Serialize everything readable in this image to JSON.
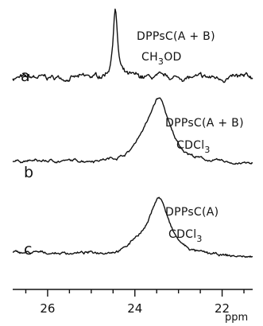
{
  "chart_data": {
    "type": "line",
    "xlabel": "ppm",
    "xlim": [
      26.8,
      21.3
    ],
    "x_reversed": true,
    "x_ticks": [
      "26",
      "24",
      "22"
    ],
    "x_tick_values": [
      26,
      24,
      22
    ],
    "grid": false,
    "series": [
      {
        "label": "a",
        "annotation_line1": "DPPsC(A + B)",
        "annotation_line2_main": "CH",
        "annotation_line2_sub": "3",
        "annotation_line2_tail": "OD",
        "peak_ppm": 24.45,
        "peak_height": 1.0,
        "peak_width_ppm": 0.06,
        "noise": 0.045,
        "baseline_tilt": 0.0
      },
      {
        "label": "b",
        "annotation_line1": "DPPsC(A + B)",
        "annotation_line2_main": "CDCl",
        "annotation_line2_sub": "3",
        "annotation_line2_tail": "",
        "peak_ppm": 23.45,
        "peak_height": 0.95,
        "peak_width_ppm": 0.3,
        "shoulder_ppm": 23.85,
        "shoulder_height": 0.12,
        "noise": 0.025,
        "baseline_tilt": -0.05
      },
      {
        "label": "c",
        "annotation_line1": "DPPsC(A)",
        "annotation_line2_main": "CDCl",
        "annotation_line2_sub": "3",
        "annotation_line2_tail": "",
        "peak_ppm": 23.45,
        "peak_height": 0.92,
        "peak_width_ppm": 0.28,
        "shoulder_ppm": 23.95,
        "shoulder_height": 0.1,
        "noise": 0.025,
        "baseline_tilt": -0.08
      }
    ]
  }
}
